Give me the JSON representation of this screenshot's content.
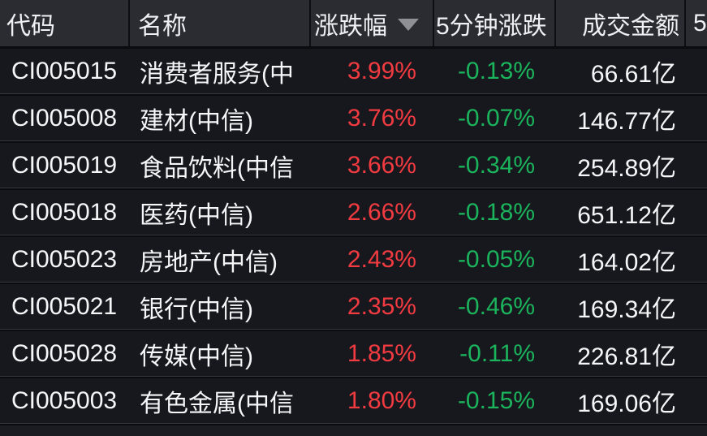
{
  "colors": {
    "up": "#f23b41",
    "down": "#1bb45c",
    "header_bg": "#2b2c31",
    "row_bg": "#17181e",
    "header_text": "#eef0f4",
    "text": "#f5f6f8"
  },
  "table": {
    "headers": {
      "code": "代码",
      "name": "名称",
      "change": "涨跌幅",
      "change5m": "5分钟涨跌",
      "turnover": "成交金额",
      "next_clipped": "5"
    },
    "sort": {
      "column": "change",
      "direction": "desc",
      "icon": "triangle-down-icon"
    },
    "rows": [
      {
        "code": "CI005015",
        "name": "消费者服务(中",
        "change": "3.99%",
        "change5m": "-0.13%",
        "turnover": "66.61亿"
      },
      {
        "code": "CI005008",
        "name": "建材(中信)",
        "change": "3.76%",
        "change5m": "-0.07%",
        "turnover": "146.77亿"
      },
      {
        "code": "CI005019",
        "name": "食品饮料(中信",
        "change": "3.66%",
        "change5m": "-0.34%",
        "turnover": "254.89亿"
      },
      {
        "code": "CI005018",
        "name": "医药(中信)",
        "change": "2.66%",
        "change5m": "-0.18%",
        "turnover": "651.12亿"
      },
      {
        "code": "CI005023",
        "name": "房地产(中信)",
        "change": "2.43%",
        "change5m": "-0.05%",
        "turnover": "164.02亿"
      },
      {
        "code": "CI005021",
        "name": "银行(中信)",
        "change": "2.35%",
        "change5m": "-0.46%",
        "turnover": "169.34亿"
      },
      {
        "code": "CI005028",
        "name": "传媒(中信)",
        "change": "1.85%",
        "change5m": "-0.11%",
        "turnover": "226.81亿"
      },
      {
        "code": "CI005003",
        "name": "有色金属(中信",
        "change": "1.80%",
        "change5m": "-0.15%",
        "turnover": "169.06亿"
      }
    ]
  }
}
